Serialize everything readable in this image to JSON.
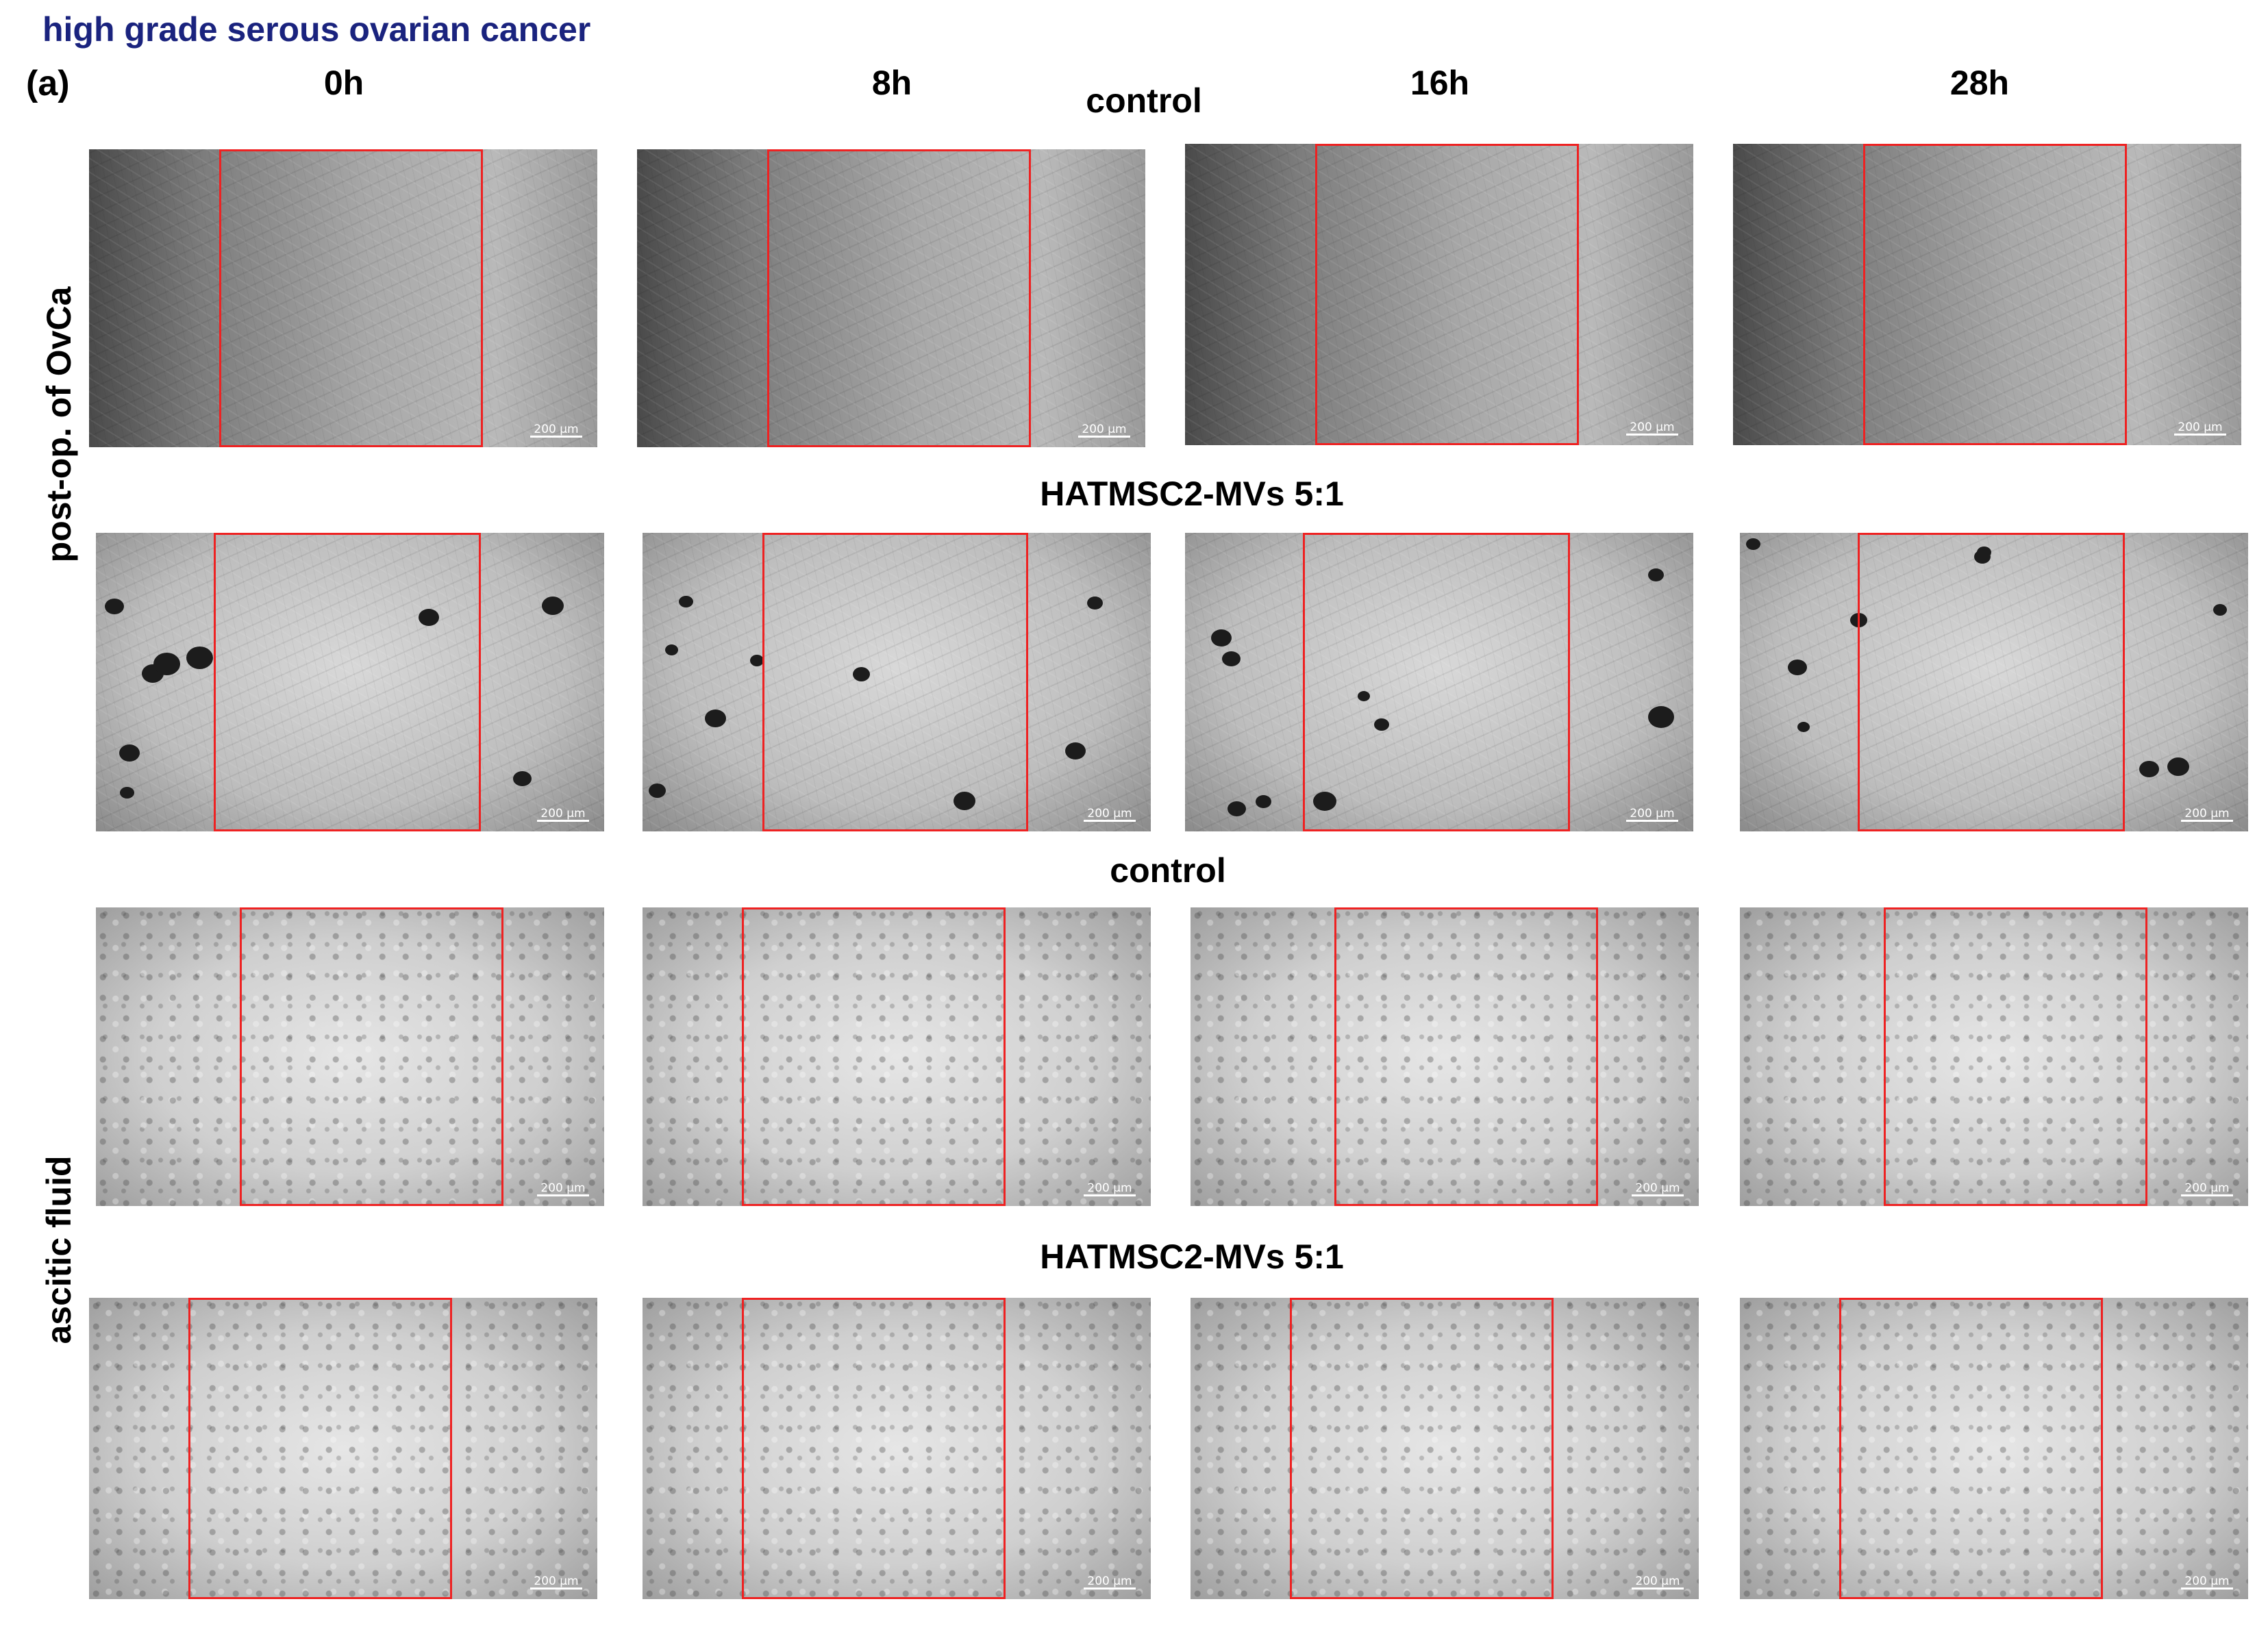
{
  "figure": {
    "title": "high grade serous ovarian cancer",
    "panel_label": "(a)",
    "timepoints": [
      "0h",
      "8h",
      "16h",
      "28h"
    ],
    "row_groups": [
      "post-op. of OvCa",
      "ascitic fluid"
    ],
    "conditions": {
      "row1": "control",
      "row2": "HATMSC2-MVs 5:1",
      "row3": "control",
      "row4": "HATMSC2-MVs 5:1"
    },
    "scale_bar_label": "200 µm",
    "colors": {
      "title": "#1a237e",
      "wound_box": "#ee2222",
      "text": "#000000"
    }
  },
  "micrographs": [
    {
      "row": 1,
      "sample": "post-op. of OvCa",
      "condition": "control",
      "time": "0h"
    },
    {
      "row": 1,
      "sample": "post-op. of OvCa",
      "condition": "control",
      "time": "8h"
    },
    {
      "row": 1,
      "sample": "post-op. of OvCa",
      "condition": "control",
      "time": "16h"
    },
    {
      "row": 1,
      "sample": "post-op. of OvCa",
      "condition": "control",
      "time": "28h"
    },
    {
      "row": 2,
      "sample": "post-op. of OvCa",
      "condition": "HATMSC2-MVs 5:1",
      "time": "0h"
    },
    {
      "row": 2,
      "sample": "post-op. of OvCa",
      "condition": "HATMSC2-MVs 5:1",
      "time": "8h"
    },
    {
      "row": 2,
      "sample": "post-op. of OvCa",
      "condition": "HATMSC2-MVs 5:1",
      "time": "16h"
    },
    {
      "row": 2,
      "sample": "post-op. of OvCa",
      "condition": "HATMSC2-MVs 5:1",
      "time": "28h"
    },
    {
      "row": 3,
      "sample": "ascitic fluid",
      "condition": "control",
      "time": "0h"
    },
    {
      "row": 3,
      "sample": "ascitic fluid",
      "condition": "control",
      "time": "8h"
    },
    {
      "row": 3,
      "sample": "ascitic fluid",
      "condition": "control",
      "time": "16h"
    },
    {
      "row": 3,
      "sample": "ascitic fluid",
      "condition": "control",
      "time": "28h"
    },
    {
      "row": 4,
      "sample": "ascitic fluid",
      "condition": "HATMSC2-MVs 5:1",
      "time": "0h"
    },
    {
      "row": 4,
      "sample": "ascitic fluid",
      "condition": "HATMSC2-MVs 5:1",
      "time": "8h"
    },
    {
      "row": 4,
      "sample": "ascitic fluid",
      "condition": "HATMSC2-MVs 5:1",
      "time": "16h"
    },
    {
      "row": 4,
      "sample": "ascitic fluid",
      "condition": "HATMSC2-MVs 5:1",
      "time": "28h"
    }
  ]
}
